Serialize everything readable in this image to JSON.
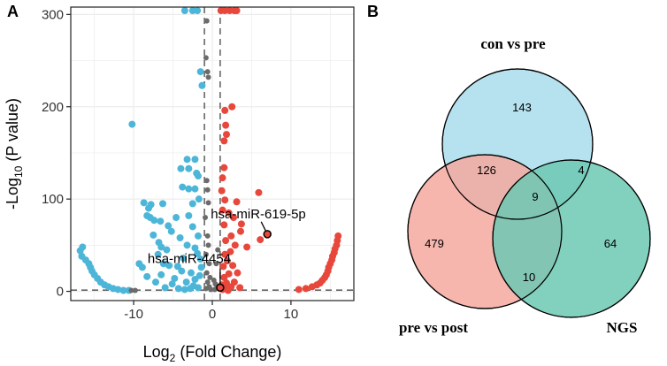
{
  "panels": {
    "a": "A",
    "b": "B"
  },
  "chart_data": [
    {
      "type": "scatter",
      "subtype": "volcano",
      "panel": "A",
      "xlabel_prefix": "Log",
      "xlabel_sub": "2",
      "xlabel_suffix": " (Fold Change)",
      "ylabel_prefix": "-Log",
      "ylabel_sub": "10",
      "ylabel_suffix": " (P value)",
      "xlim": [
        -18,
        18
      ],
      "ylim": [
        -10,
        308
      ],
      "xticks": [
        -10,
        0,
        10
      ],
      "yticks": [
        0,
        100,
        200,
        300
      ],
      "grid": true,
      "thresholds": {
        "x": [
          -1,
          1
        ],
        "y": 1.3
      },
      "colors": {
        "down": "#4db6d8",
        "ns": "#6b6b6b",
        "up": "#e8473c",
        "threshold": "#666666",
        "grid": "#ececec"
      },
      "series": [
        {
          "name": "down",
          "color": "#4db6d8",
          "points": [
            [
              -3.5,
              305
            ],
            [
              -2.5,
              305
            ],
            [
              -1.9,
              305
            ],
            [
              -1.5,
              238
            ],
            [
              -1.3,
              223
            ],
            [
              -10.2,
              181
            ],
            [
              -3.2,
              143
            ],
            [
              -2.2,
              143
            ],
            [
              -4,
              133
            ],
            [
              -3,
              133
            ],
            [
              -2,
              128
            ],
            [
              -1.8,
              125
            ],
            [
              -3.8,
              113
            ],
            [
              -3,
              111
            ],
            [
              -2.2,
              111
            ],
            [
              -1.7,
              100
            ],
            [
              -2.5,
              95
            ],
            [
              -8.7,
              96
            ],
            [
              -8.1,
              90
            ],
            [
              -7.8,
              94
            ],
            [
              -6.3,
              95
            ],
            [
              -8.3,
              82
            ],
            [
              -7.9,
              80
            ],
            [
              -7.4,
              77
            ],
            [
              -6.6,
              76
            ],
            [
              -4.6,
              80
            ],
            [
              -5.6,
              71
            ],
            [
              -5.2,
              65
            ],
            [
              -3,
              82
            ],
            [
              -2.5,
              70
            ],
            [
              -1.8,
              60
            ],
            [
              -4.1,
              58
            ],
            [
              -7.5,
              61
            ],
            [
              -6.8,
              53
            ],
            [
              -6.5,
              48
            ],
            [
              -3.2,
              50
            ],
            [
              -2.2,
              47
            ],
            [
              -1.9,
              41
            ],
            [
              -1.5,
              35
            ],
            [
              -3.7,
              36
            ],
            [
              -5.8,
              45
            ],
            [
              -6.9,
              40
            ],
            [
              -6.2,
              30
            ],
            [
              -5.5,
              28
            ],
            [
              -4.4,
              27
            ],
            [
              -3.9,
              22
            ],
            [
              -2.7,
              20
            ],
            [
              -1.6,
              17
            ],
            [
              -2.2,
              13
            ],
            [
              -4.8,
              14
            ],
            [
              -6.5,
              18
            ],
            [
              -3.3,
              10
            ],
            [
              -2.4,
              6
            ],
            [
              -1.8,
              4
            ],
            [
              -5.1,
              8
            ],
            [
              -7.2,
              10
            ],
            [
              -6,
              4
            ],
            [
              -4.3,
              3
            ],
            [
              -3.5,
              2
            ],
            [
              -2.8,
              3
            ],
            [
              -8.3,
              16
            ],
            [
              -9.3,
              30
            ],
            [
              -8.9,
              26
            ],
            [
              -1.4,
              26
            ],
            [
              -16.5,
              48
            ],
            [
              -16.8,
              44
            ],
            [
              -16.6,
              38
            ],
            [
              -16.1,
              34
            ],
            [
              -15.7,
              30
            ],
            [
              -15.5,
              26
            ],
            [
              -15.3,
              22
            ],
            [
              -15,
              18
            ],
            [
              -14.6,
              14
            ],
            [
              -14.2,
              10
            ],
            [
              -13.7,
              7
            ],
            [
              -13.2,
              5
            ],
            [
              -12.6,
              3
            ],
            [
              -12,
              2
            ],
            [
              -11.3,
              1
            ],
            [
              -10.6,
              1
            ]
          ]
        },
        {
          "name": "ns",
          "color": "#6b6b6b",
          "points": [
            [
              -0.7,
              293
            ],
            [
              -0.8,
              253
            ],
            [
              -0.6,
              238
            ],
            [
              -0.5,
              232
            ],
            [
              -0.7,
              120
            ],
            [
              -0.6,
              110
            ],
            [
              -0.5,
              96
            ],
            [
              -0.9,
              80
            ],
            [
              -0.6,
              60
            ],
            [
              -0.5,
              50
            ],
            [
              -0.8,
              40
            ],
            [
              -0.4,
              30
            ],
            [
              -0.7,
              20
            ],
            [
              -0.3,
              15
            ],
            [
              -0.6,
              10
            ],
            [
              -0.4,
              5
            ],
            [
              -0.8,
              3
            ],
            [
              -0.2,
              2
            ],
            [
              0.3,
              2
            ],
            [
              0.6,
              4
            ],
            [
              0.4,
              8
            ],
            [
              0.5,
              30
            ],
            [
              0.7,
              45
            ],
            [
              0.2,
              12
            ],
            [
              -9.8,
              1
            ],
            [
              -10.3,
              1
            ]
          ]
        },
        {
          "name": "up",
          "color": "#e8473c",
          "points": [
            [
              1.1,
              305
            ],
            [
              1.6,
              305
            ],
            [
              2.2,
              305
            ],
            [
              2.8,
              305
            ],
            [
              3.1,
              305
            ],
            [
              2.5,
              200
            ],
            [
              1.6,
              196
            ],
            [
              1.7,
              180
            ],
            [
              1.5,
              163
            ],
            [
              1.8,
              170
            ],
            [
              1.5,
              134
            ],
            [
              1.3,
              123
            ],
            [
              1.2,
              109
            ],
            [
              1.6,
              99
            ],
            [
              1.3,
              88
            ],
            [
              2.1,
              85
            ],
            [
              3.1,
              97
            ],
            [
              5.9,
              107
            ],
            [
              2.7,
              80
            ],
            [
              1.5,
              72
            ],
            [
              3.6,
              65
            ],
            [
              2.4,
              60
            ],
            [
              1.7,
              55
            ],
            [
              2.9,
              50
            ],
            [
              2.3,
              43
            ],
            [
              1.6,
              40
            ],
            [
              3.7,
              73
            ],
            [
              1.9,
              33
            ],
            [
              2.6,
              28
            ],
            [
              1.4,
              27
            ],
            [
              3.2,
              20
            ],
            [
              2.1,
              19
            ],
            [
              1.5,
              15
            ],
            [
              2.8,
              10
            ],
            [
              1.8,
              9
            ],
            [
              1.2,
              7
            ],
            [
              2.4,
              5
            ],
            [
              1.6,
              3
            ],
            [
              3.5,
              4
            ],
            [
              1.3,
              2
            ],
            [
              2,
              1
            ],
            [
              6.1,
              56
            ],
            [
              4.4,
              48
            ],
            [
              16,
              60
            ],
            [
              15.9,
              55
            ],
            [
              15.8,
              50
            ],
            [
              15.6,
              46
            ],
            [
              15.5,
              42
            ],
            [
              15.3,
              38
            ],
            [
              15.2,
              34
            ],
            [
              15,
              30
            ],
            [
              14.8,
              26
            ],
            [
              14.7,
              22
            ],
            [
              14.5,
              18
            ],
            [
              14.3,
              15
            ],
            [
              14,
              12
            ],
            [
              13.7,
              9
            ],
            [
              13.3,
              7
            ],
            [
              12.7,
              5
            ],
            [
              11.9,
              3
            ],
            [
              11,
              2
            ]
          ]
        }
      ],
      "annotations": [
        {
          "label": "hsa-miR-619-5p",
          "x": 7.0,
          "y": 62
        },
        {
          "label": "hsa-miR-4454",
          "x": 1.0,
          "y": 4
        }
      ]
    },
    {
      "type": "venn",
      "panel": "B",
      "sets": [
        {
          "name": "con vs pre",
          "color": "#a9dcec",
          "position": "top"
        },
        {
          "name": "pre vs post",
          "color": "#f4a9a0",
          "position": "bottom-left"
        },
        {
          "name": "NGS",
          "color": "#6cc8b3",
          "position": "bottom-right"
        }
      ],
      "regions": [
        {
          "sets": [
            "con vs pre"
          ],
          "value": 143
        },
        {
          "sets": [
            "pre vs post"
          ],
          "value": 479
        },
        {
          "sets": [
            "NGS"
          ],
          "value": 64
        },
        {
          "sets": [
            "con vs pre",
            "pre vs post"
          ],
          "value": 126
        },
        {
          "sets": [
            "con vs pre",
            "NGS"
          ],
          "value": 4
        },
        {
          "sets": [
            "pre vs post",
            "NGS"
          ],
          "value": 10
        },
        {
          "sets": [
            "con vs pre",
            "pre vs post",
            "NGS"
          ],
          "value": 9
        }
      ]
    }
  ]
}
